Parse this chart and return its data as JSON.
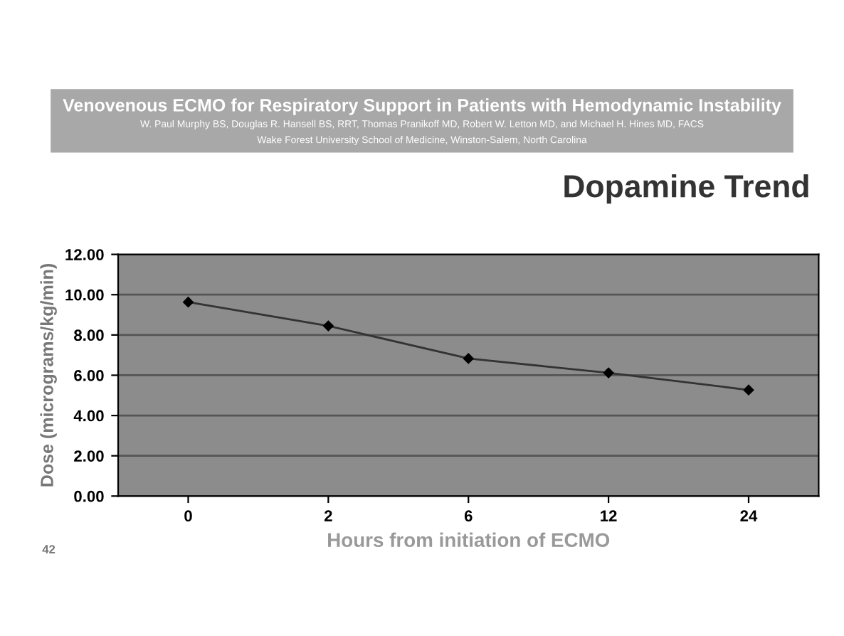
{
  "chart_data": {
    "type": "line",
    "title": "Dopamine Trend",
    "subtitle": "Venovenous ECMO for Respiratory Support in Patients with Hemodynamic Instability",
    "annotations": [
      "W. Paul Murphy BS, Douglas R. Hansell BS, RRT, Thomas Pranikoff MD, Robert W. Letton MD, and Michael H. Hines MD, FACS",
      "Wake Forest University School of Medicine, Winston-Salem, North Carolina",
      "42"
    ],
    "xlabel": "Hours from initiation of ECMO",
    "ylabel": "Dose (micrograms/kg/min)",
    "categories": [
      "0",
      "2",
      "6",
      "12",
      "24"
    ],
    "series": [
      {
        "color": "#333333",
        "values": [
          9.63,
          8.45,
          6.83,
          6.12,
          5.27
        ]
      }
    ],
    "ylim": [
      0,
      12
    ],
    "yticks": [
      {
        "value": 0,
        "label": "0.00"
      },
      {
        "value": 2,
        "label": "2.00"
      },
      {
        "value": 4,
        "label": "4.00"
      },
      {
        "value": 6,
        "label": "6.00"
      },
      {
        "value": 8,
        "label": "8.00"
      },
      {
        "value": 10,
        "label": "10.00"
      },
      {
        "value": 12,
        "label": "12.00"
      }
    ],
    "grid": "y",
    "marker": "diamond",
    "line_style": "solid"
  }
}
